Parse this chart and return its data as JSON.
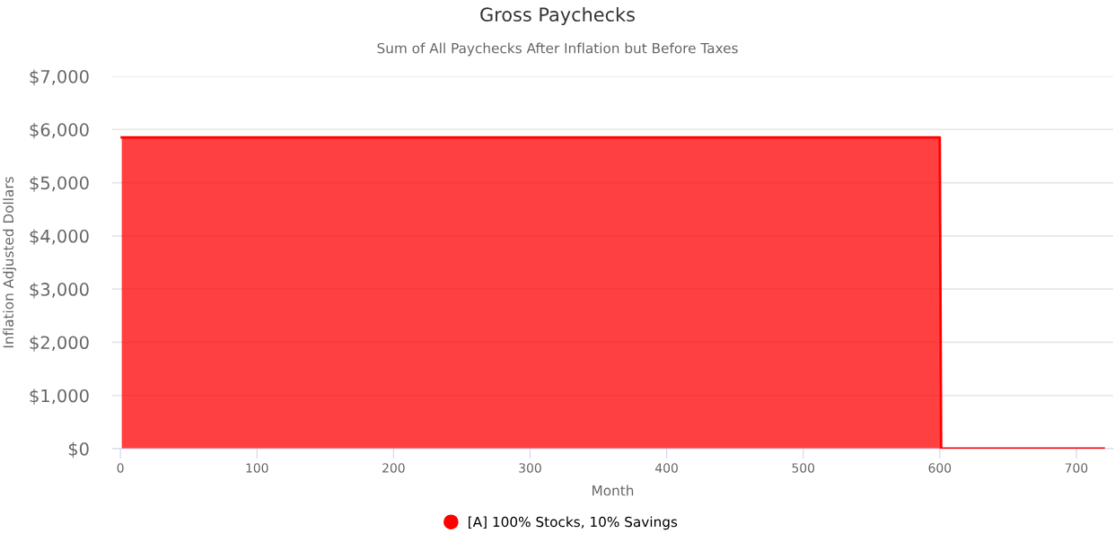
{
  "chart_data": {
    "type": "area",
    "title": "Gross Paychecks",
    "subtitle": "Sum of All Paychecks After Inflation but Before Taxes",
    "xlabel": "Month",
    "ylabel": "Inflation Adjusted Dollars",
    "x": [
      1,
      600,
      601,
      720
    ],
    "series": [
      {
        "name": "[A] 100% Stocks, 10% Savings",
        "color": "#ff0000",
        "values": [
          5850,
          5850,
          0,
          0
        ]
      }
    ],
    "xlim": [
      -6,
      727
    ],
    "xticks": [
      0,
      100,
      200,
      300,
      400,
      500,
      600,
      700
    ],
    "ylim": [
      0,
      7000
    ],
    "yticks": [
      {
        "value": 0,
        "label": "$0"
      },
      {
        "value": 1000,
        "label": "$1,000"
      },
      {
        "value": 2000,
        "label": "$2,000"
      },
      {
        "value": 3000,
        "label": "$3,000"
      },
      {
        "value": 4000,
        "label": "$4,000"
      },
      {
        "value": 5000,
        "label": "$5,000"
      },
      {
        "value": 6000,
        "label": "$6,000"
      },
      {
        "value": 7000,
        "label": "$7,000"
      }
    ],
    "grid": "y",
    "legend": "bottom"
  }
}
